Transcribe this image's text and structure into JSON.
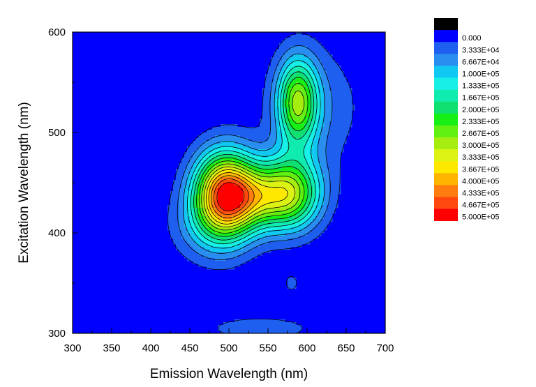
{
  "chart_data": {
    "type": "heatmap",
    "subtype": "filled-contour",
    "title": "",
    "xlabel": "Emission Wavelength (nm)",
    "ylabel": "Excitation Wavelength (nm)",
    "xlim": [
      300,
      700
    ],
    "ylim": [
      300,
      600
    ],
    "x_ticks": [
      "300",
      "350",
      "400",
      "450",
      "500",
      "550",
      "600",
      "650",
      "700"
    ],
    "y_ticks": [
      "300",
      "400",
      "500",
      "600"
    ],
    "grid": false,
    "legend_placement": "right",
    "color_levels": [
      {
        "label": "",
        "color": "#000000"
      },
      {
        "label": "0.000",
        "color": "#0000ff"
      },
      {
        "label": "3.333E+04",
        "color": "#1f5ff0"
      },
      {
        "label": "6.667E+04",
        "color": "#2a8ef0"
      },
      {
        "label": "1.000E+05",
        "color": "#11c8f2"
      },
      {
        "label": "1.333E+05",
        "color": "#16f0e6"
      },
      {
        "label": "1.667E+05",
        "color": "#10ecb0"
      },
      {
        "label": "2.000E+05",
        "color": "#10e070"
      },
      {
        "label": "2.333E+05",
        "color": "#16f016"
      },
      {
        "label": "2.667E+05",
        "color": "#62f012"
      },
      {
        "label": "3.000E+05",
        "color": "#a6ee10"
      },
      {
        "label": "3.333E+05",
        "color": "#dcf212"
      },
      {
        "label": "3.667E+05",
        "color": "#ffe800"
      },
      {
        "label": "4.000E+05",
        "color": "#ffb400"
      },
      {
        "label": "4.333E+05",
        "color": "#ff7d0f"
      },
      {
        "label": "4.667E+05",
        "color": "#ff4810"
      },
      {
        "label": "5.000E+05",
        "color": "#ff0000"
      }
    ],
    "peaks": [
      {
        "em": 495,
        "ex": 438,
        "value": 450000.0,
        "sx": 28,
        "sy": 30
      },
      {
        "em": 580,
        "ex": 440,
        "value": 240000.0,
        "sx": 28,
        "sy": 26
      },
      {
        "em": 540,
        "ex": 436,
        "value": 190000.0,
        "sx": 35,
        "sy": 22
      },
      {
        "em": 588,
        "ex": 530,
        "value": 270000.0,
        "sx": 18,
        "sy": 30
      },
      {
        "em": 470,
        "ex": 405,
        "value": 60000.0,
        "sx": 35,
        "sy": 25
      },
      {
        "em": 580,
        "ex": 350,
        "value": 45000.0,
        "sx": 8,
        "sy": 8
      },
      {
        "em": 540,
        "ex": 305,
        "value": 45000.0,
        "sx": 70,
        "sy": 12
      },
      {
        "em": 610,
        "ex": 525,
        "value": 60000.0,
        "sx": 45,
        "sy": 45
      }
    ]
  }
}
